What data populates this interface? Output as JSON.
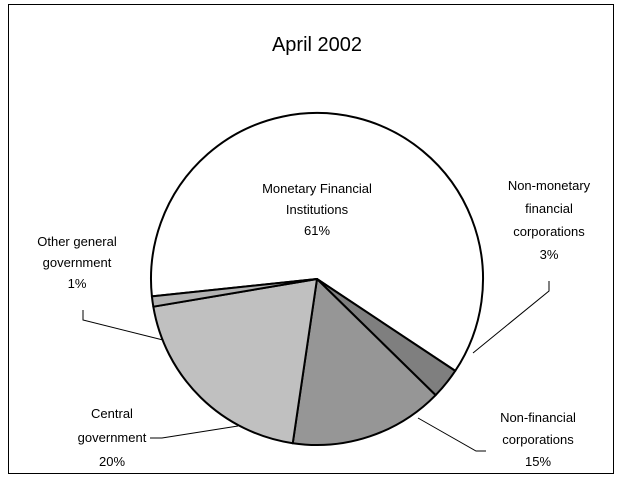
{
  "chart_data": {
    "type": "pie",
    "title": "April 2002",
    "slices": [
      {
        "label_lines": [
          "Monetary Financial",
          "Institutions"
        ],
        "value_label": "61%",
        "value": 61,
        "color": "#ffffff"
      },
      {
        "label_lines": [
          "Non-monetary",
          "financial",
          "corporations"
        ],
        "value_label": "3%",
        "value": 3,
        "color": "#7f7f7f"
      },
      {
        "label_lines": [
          "Non-financial",
          "corporations"
        ],
        "value_label": "15%",
        "value": 15,
        "color": "#969696"
      },
      {
        "label_lines": [
          "Central",
          "government"
        ],
        "value_label": "20%",
        "value": 20,
        "color": "#c0c0c0"
      },
      {
        "label_lines": [
          "Other general",
          "government"
        ],
        "value_label": "1%",
        "value": 1,
        "color": "#b2b2b2"
      }
    ]
  }
}
